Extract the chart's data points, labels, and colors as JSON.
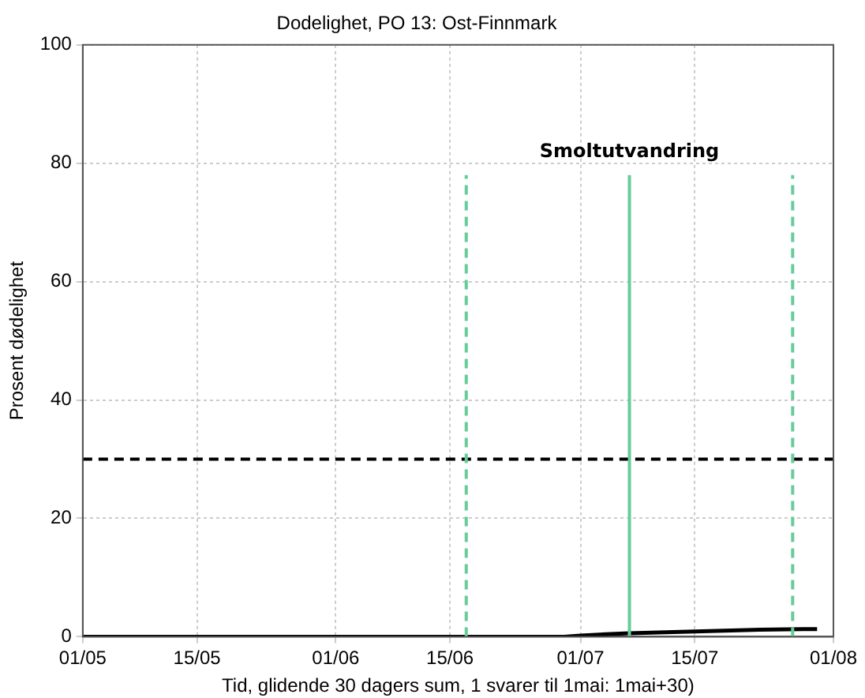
{
  "chart_data": {
    "type": "line",
    "title": "Dodelighet, PO 13: Ost-Finnmark",
    "xlabel": "Tid, glidende 30 dagers sum, 1 svarer til 1mai: 1mai+30)",
    "ylabel": "Prosent dødelighet",
    "series": [
      {
        "color": "#000000",
        "x": [
          "--05-01",
          "--06-29",
          "--07-01",
          "--07-07",
          "--07-15",
          "--07-23",
          "--07-30"
        ],
        "values": [
          0,
          0,
          0.2,
          0.6,
          0.9,
          1.2,
          1.3
        ]
      }
    ],
    "xlim": [
      "--05-01",
      "--08-01"
    ],
    "xticks": [
      {
        "value": "--05-01",
        "label": "01/05"
      },
      {
        "value": "--05-15",
        "label": "15/05"
      },
      {
        "value": "--06-01",
        "label": "01/06"
      },
      {
        "value": "--06-15",
        "label": "15/06"
      },
      {
        "value": "--07-01",
        "label": "01/07"
      },
      {
        "value": "--07-15",
        "label": "15/07"
      },
      {
        "value": "--08-01",
        "label": "01/08"
      }
    ],
    "ylim": [
      0,
      100
    ],
    "yticks": [
      0,
      20,
      40,
      60,
      80,
      100
    ],
    "ref_lines": [
      {
        "axis": "y",
        "value": 30,
        "color": "#000000",
        "line_style": "dashed"
      },
      {
        "axis": "x",
        "value": "--06-17",
        "color": "#66cc99",
        "line_style": "dashed"
      },
      {
        "axis": "x",
        "value": "--07-07",
        "color": "#66cc99",
        "line_style": "solid",
        "label": "Smoltutvandring"
      },
      {
        "axis": "x",
        "value": "--07-27",
        "color": "#66cc99",
        "line_style": "dashed"
      }
    ],
    "grid": true,
    "legend": false,
    "marker": "none",
    "line_style": "solid"
  }
}
